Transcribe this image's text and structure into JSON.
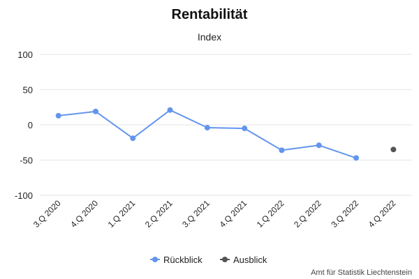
{
  "chart_data": {
    "type": "line",
    "title": "Rentabilität",
    "subtitle": "Index",
    "categories": [
      "3.Q 2020",
      "4.Q 2020",
      "1.Q 2021",
      "2.Q 2021",
      "3.Q 2021",
      "4.Q 2021",
      "1.Q 2022",
      "2.Q 2022",
      "3.Q 2022",
      "4.Q 2022"
    ],
    "ylim": [
      -100,
      100
    ],
    "yticks": [
      100,
      50,
      0,
      -50,
      -100
    ],
    "grid": true,
    "legend_position": "bottom-center",
    "series": [
      {
        "name": "Rückblick",
        "color": "#6495ED",
        "line": true,
        "values": [
          13,
          19,
          -19,
          21,
          -4,
          -5,
          -36,
          -29,
          -47,
          null
        ]
      },
      {
        "name": "Ausblick",
        "color": "#555555",
        "line": false,
        "values": [
          null,
          null,
          null,
          null,
          null,
          null,
          null,
          null,
          null,
          -35
        ]
      }
    ],
    "credits": "Amt für Statistik Liechtenstein"
  }
}
